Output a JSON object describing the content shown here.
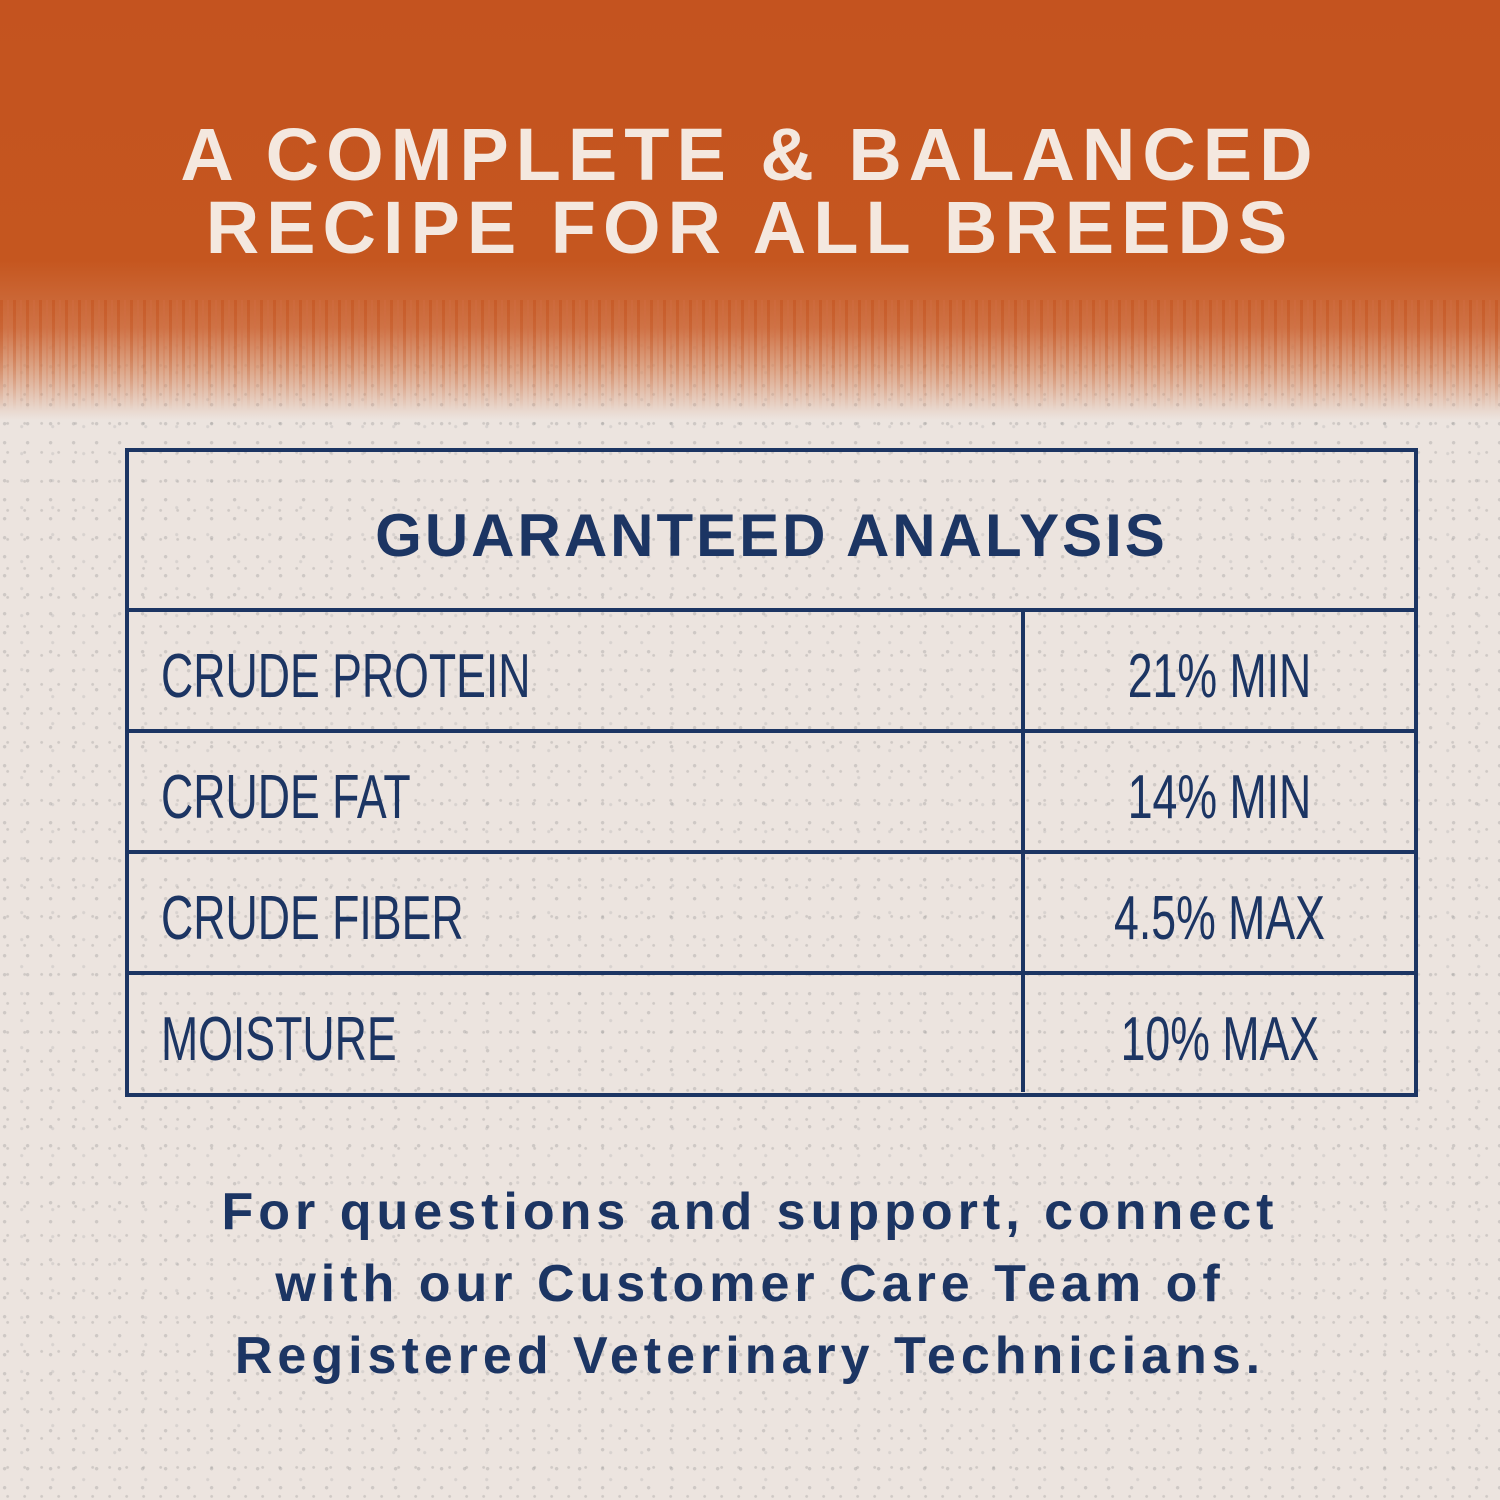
{
  "colors": {
    "banner": "#c4531f",
    "background": "#ece4df",
    "navy": "#1c3563",
    "headline": "#f4e8df"
  },
  "headline": {
    "line1": "A COMPLETE & BALANCED",
    "line2": "RECIPE FOR ALL BREEDS"
  },
  "analysis": {
    "title": "GUARANTEED ANALYSIS",
    "rows": [
      {
        "label": "CRUDE PROTEIN",
        "value": "21% MIN"
      },
      {
        "label": "CRUDE FAT",
        "value": "14% MIN"
      },
      {
        "label": "CRUDE FIBER",
        "value": "4.5% MAX"
      },
      {
        "label": "MOISTURE",
        "value": "10% MAX"
      }
    ]
  },
  "footer": {
    "line1": "For questions and support, connect",
    "line2": "with our Customer Care Team of",
    "line3": "Registered Veterinary Technicians."
  }
}
